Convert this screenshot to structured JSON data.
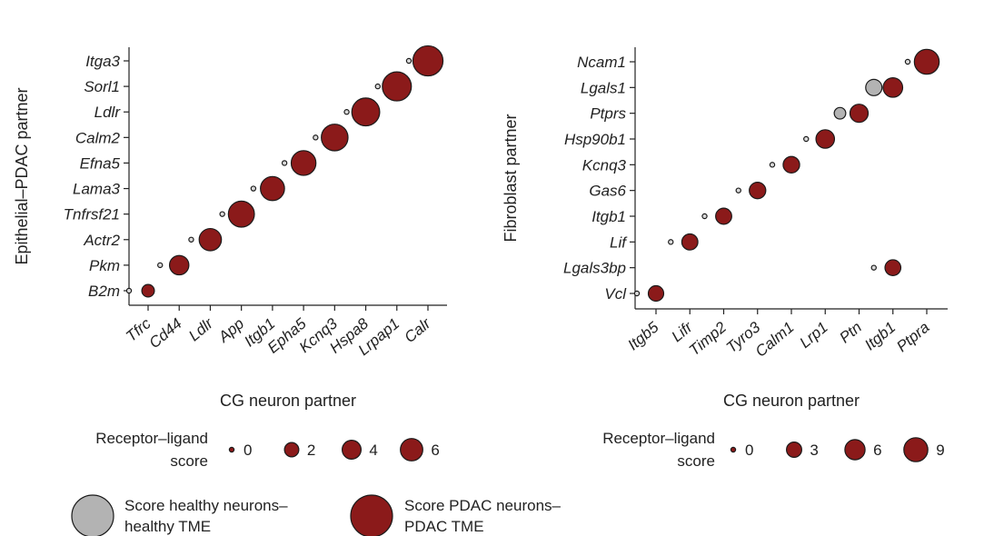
{
  "colors": {
    "pdac": "#8b1a1a",
    "healthy": "#b3b3b3",
    "stroke": "#1a1a1a",
    "axis": "#222222"
  },
  "chart_data": [
    {
      "type": "scatter",
      "title": "",
      "xlabel": "CG neuron partner",
      "ylabel": "Epithelial–PDAC partner",
      "x_categories": [
        "Tfrc",
        "Cd44",
        "Ldlr",
        "App",
        "Itgb1",
        "Epha5",
        "Kcnq3",
        "Hspa8",
        "Lrpap1",
        "Calr"
      ],
      "y_categories": [
        "B2m",
        "Pkm",
        "Actr2",
        "Tnfrsf21",
        "Lama3",
        "Efna5",
        "Calm2",
        "Ldlr",
        "Sorl1",
        "Itga3"
      ],
      "series": [
        {
          "name": "Score healthy neurons–healthy TME",
          "points": [
            {
              "x": "Tfrc",
              "y": "B2m",
              "score": 0.3
            },
            {
              "x": "Cd44",
              "y": "Pkm",
              "score": 0.3
            },
            {
              "x": "Ldlr",
              "y": "Actr2",
              "score": 0.3
            },
            {
              "x": "App",
              "y": "Tnfrsf21",
              "score": 0.3
            },
            {
              "x": "Itgb1",
              "y": "Lama3",
              "score": 0.3
            },
            {
              "x": "Epha5",
              "y": "Efna5",
              "score": 0.3
            },
            {
              "x": "Kcnq3",
              "y": "Calm2",
              "score": 0.3
            },
            {
              "x": "Hspa8",
              "y": "Ldlr",
              "score": 0.3
            },
            {
              "x": "Lrpap1",
              "y": "Sorl1",
              "score": 0.3
            },
            {
              "x": "Calr",
              "y": "Itga3",
              "score": 0.3
            }
          ]
        },
        {
          "name": "Score PDAC neurons–PDAC TME",
          "points": [
            {
              "x": "Tfrc",
              "y": "B2m",
              "score": 0.6
            },
            {
              "x": "Cd44",
              "y": "Pkm",
              "score": 1.8
            },
            {
              "x": "Ldlr",
              "y": "Actr2",
              "score": 2.5
            },
            {
              "x": "App",
              "y": "Tnfrsf21",
              "score": 3.6
            },
            {
              "x": "Itgb1",
              "y": "Lama3",
              "score": 3.0
            },
            {
              "x": "Epha5",
              "y": "Efna5",
              "score": 3.2
            },
            {
              "x": "Kcnq3",
              "y": "Calm2",
              "score": 3.8
            },
            {
              "x": "Hspa8",
              "y": "Ldlr",
              "score": 4.2
            },
            {
              "x": "Lrpap1",
              "y": "Sorl1",
              "score": 4.6
            },
            {
              "x": "Calr",
              "y": "Itga3",
              "score": 5.0
            }
          ]
        }
      ],
      "legend": {
        "title": "Receptor–ligand score",
        "sizes": [
          0,
          2,
          4,
          6
        ]
      }
    },
    {
      "type": "scatter",
      "title": "",
      "xlabel": "CG neuron partner",
      "ylabel": "Fibroblast partner",
      "x_categories": [
        "Itgb5",
        "Lifr",
        "Timp2",
        "Tyro3",
        "Calm1",
        "Lrp1",
        "Ptn",
        "Itgb1",
        "Ptpra"
      ],
      "y_categories": [
        "Vcl",
        "Lgals3bp",
        "Lif",
        "Itgb1",
        "Gas6",
        "Kcnq3",
        "Hsp90b1",
        "Ptprs",
        "Lgals1",
        "Ncam1"
      ],
      "series": [
        {
          "name": "Score healthy neurons–healthy TME",
          "points": [
            {
              "x": "Itgb5",
              "y": "Vcl",
              "score": 0.5
            },
            {
              "x": "Lifr",
              "y": "Lif",
              "score": 0.5
            },
            {
              "x": "Timp2",
              "y": "Itgb1",
              "score": 0.5
            },
            {
              "x": "Tyro3",
              "y": "Gas6",
              "score": 0.5
            },
            {
              "x": "Calm1",
              "y": "Kcnq3",
              "score": 0.5
            },
            {
              "x": "Lrp1",
              "y": "Hsp90b1",
              "score": 0.5
            },
            {
              "x": "Ptn",
              "y": "Ptprs",
              "score": 1.3
            },
            {
              "x": "Itgb1",
              "y": "Lgals3bp",
              "score": 0.5
            },
            {
              "x": "Itgb1",
              "y": "Lgals1",
              "score": 3.2
            },
            {
              "x": "Ptpra",
              "y": "Ncam1",
              "score": 0.5
            }
          ]
        },
        {
          "name": "Score PDAC neurons–PDAC TME",
          "points": [
            {
              "x": "Itgb5",
              "y": "Vcl",
              "score": 2.8
            },
            {
              "x": "Lifr",
              "y": "Lif",
              "score": 3.1
            },
            {
              "x": "Timp2",
              "y": "Itgb1",
              "score": 3.1
            },
            {
              "x": "Tyro3",
              "y": "Gas6",
              "score": 3.3
            },
            {
              "x": "Calm1",
              "y": "Kcnq3",
              "score": 3.3
            },
            {
              "x": "Lrp1",
              "y": "Hsp90b1",
              "score": 4.4
            },
            {
              "x": "Ptn",
              "y": "Ptprs",
              "score": 4.2
            },
            {
              "x": "Itgb1",
              "y": "Lgals3bp",
              "score": 3.0
            },
            {
              "x": "Itgb1",
              "y": "Lgals1",
              "score": 5.0
            },
            {
              "x": "Ptpra",
              "y": "Ncam1",
              "score": 8.8
            }
          ]
        }
      ],
      "legend": {
        "title": "Receptor–ligand score",
        "sizes": [
          0,
          3,
          6,
          9
        ]
      }
    }
  ],
  "legends": {
    "score_title_line1": "Receptor–ligand",
    "score_title_line2": "score",
    "healthy_line1": "Score healthy neurons–",
    "healthy_line2": "healthy TME",
    "pdac_line1": "Score PDAC neurons–",
    "pdac_line2": "PDAC TME"
  }
}
